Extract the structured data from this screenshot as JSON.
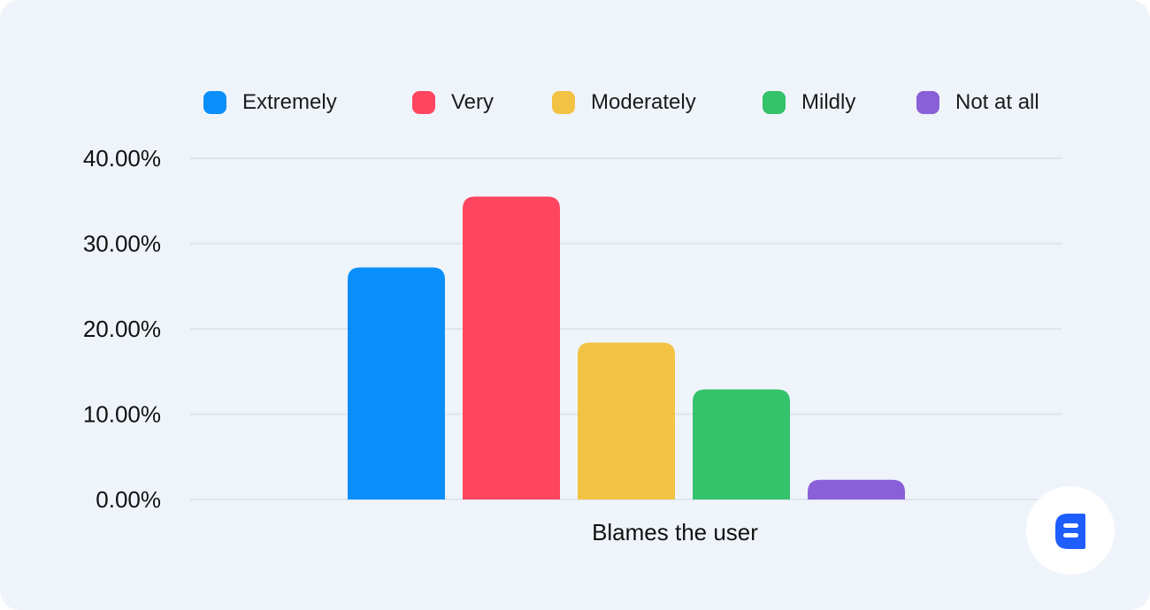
{
  "chart_data": {
    "type": "bar",
    "categories": [
      "Blames the user"
    ],
    "series": [
      {
        "name": "Extremely",
        "color": "#0a8ffa",
        "values": [
          27.2
        ]
      },
      {
        "name": "Very",
        "color": "#ff4560",
        "values": [
          35.5
        ]
      },
      {
        "name": "Moderately",
        "color": "#f2c342",
        "values": [
          18.4
        ]
      },
      {
        "name": "Mildly",
        "color": "#34c26a",
        "values": [
          12.9
        ]
      },
      {
        "name": "Not at all",
        "color": "#8b5fd8",
        "values": [
          2.3
        ]
      }
    ],
    "title": "",
    "xlabel": "",
    "ylabel": "",
    "ylim": [
      0,
      40
    ],
    "yticks": [
      "0.00%",
      "10.00%",
      "20.00%",
      "30.00%",
      "40.00%"
    ],
    "grid": true,
    "legend_position": "top"
  },
  "branding": {
    "logo": "brand-logo-icon",
    "accent": "#1e5eff"
  }
}
